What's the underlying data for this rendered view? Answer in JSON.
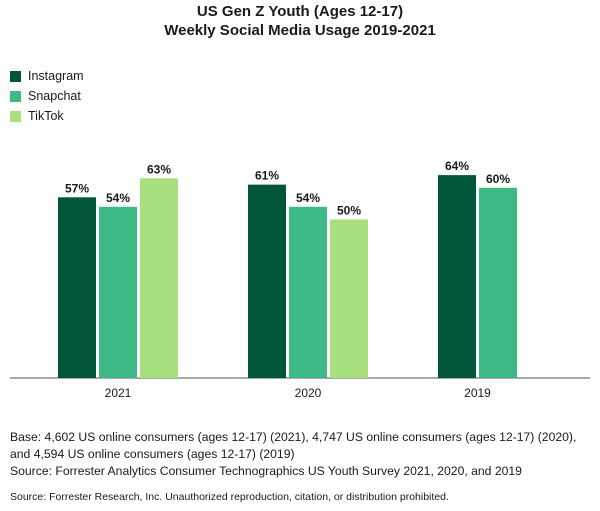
{
  "chart_data": {
    "type": "bar",
    "title": "US Gen Z Youth (Ages 12-17)",
    "subtitle": "Weekly Social Media Usage 2019-2021",
    "categories": [
      "2021",
      "2020",
      "2019"
    ],
    "series": [
      {
        "name": "Instagram",
        "color": "#00553a",
        "values": [
          57,
          61,
          64
        ]
      },
      {
        "name": "Snapchat",
        "color": "#3cb985",
        "values": [
          54,
          54,
          60
        ]
      },
      {
        "name": "TikTok",
        "color": "#a8e07f",
        "values": [
          63,
          50,
          null
        ]
      }
    ],
    "value_suffix": "%",
    "ylim": [
      0,
      100
    ],
    "legend_position": "top-left",
    "grid": false
  },
  "notes": {
    "base": "Base: 4,602 US online consumers (ages 12-17) (2021), 4,747 US online consumers (ages 12-17) (2020), and 4,594 US online consumers (ages 12-17) (2019)",
    "source": "Source: Forrester Analytics Consumer Technographics US Youth Survey 2021, 2020, and 2019",
    "copyright": "Source: Forrester Research, Inc. Unauthorized reproduction, citation, or distribution prohibited."
  }
}
